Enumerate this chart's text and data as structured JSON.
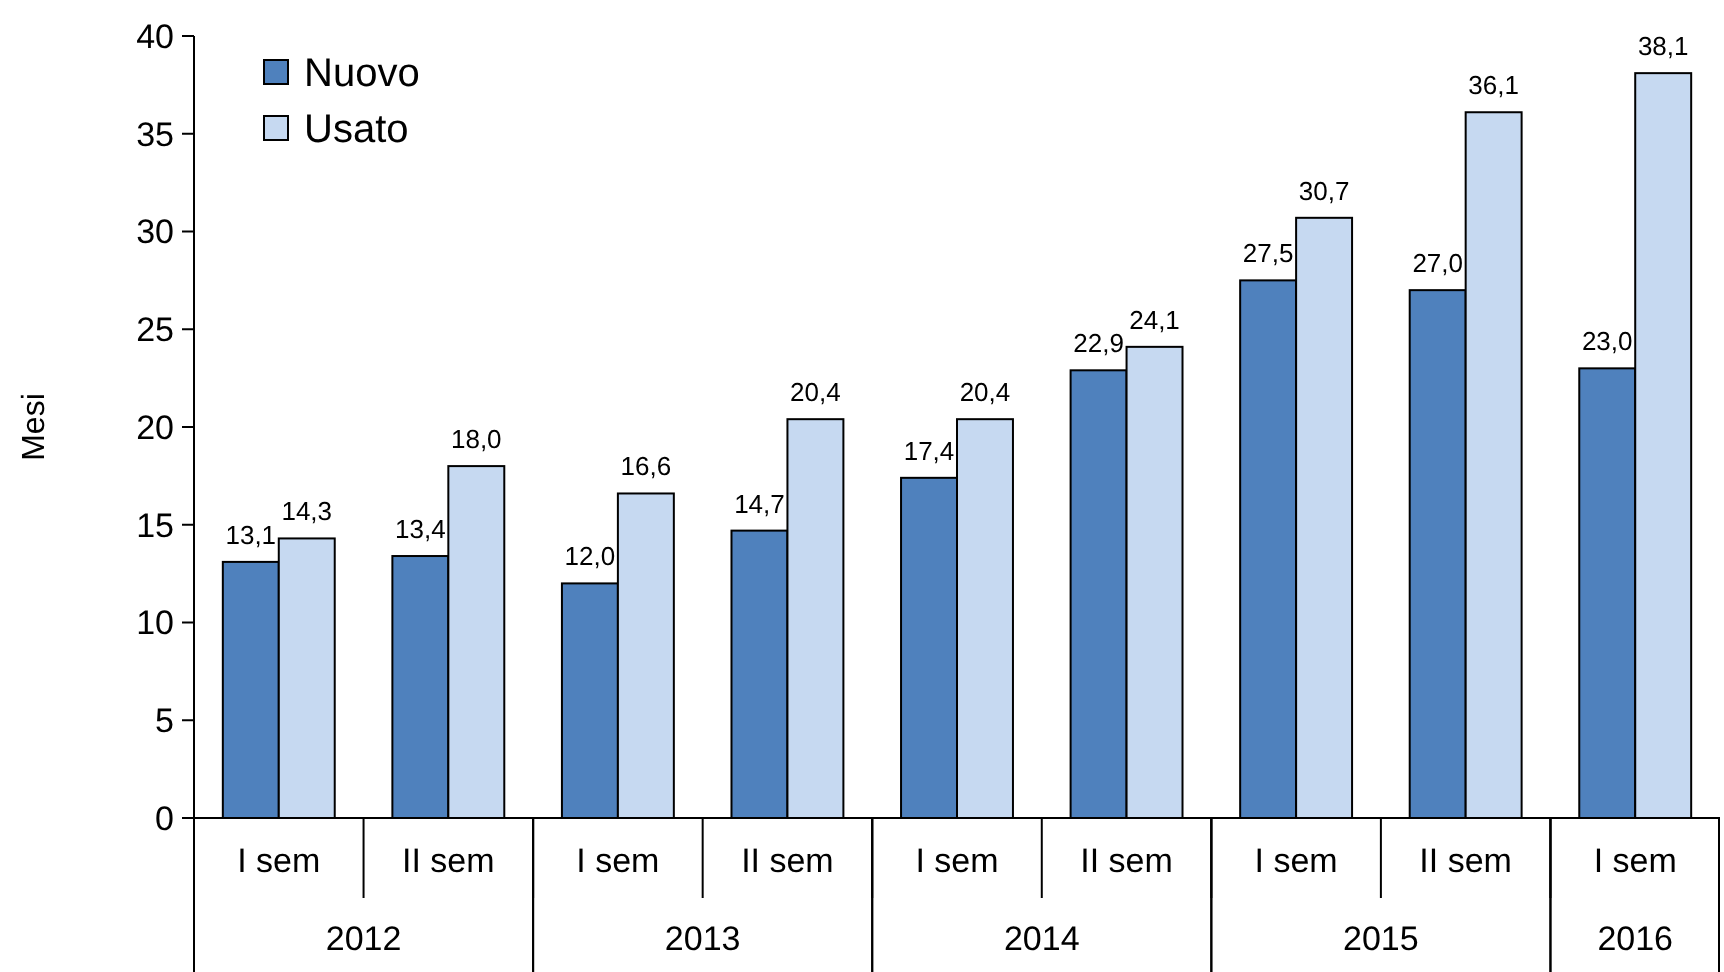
{
  "chart_data": {
    "type": "bar",
    "ylabel": "Mesi",
    "categories": [
      "I sem",
      "II sem",
      "I sem",
      "II sem",
      "I sem",
      "II sem",
      "I sem",
      "II sem",
      "I sem"
    ],
    "annotations": [
      "2012",
      "2013",
      "2014",
      "2015",
      "2016"
    ],
    "series": [
      {
        "name": "Nuovo",
        "color": "#4f81bd",
        "values": [
          13.1,
          13.4,
          12.0,
          14.7,
          17.4,
          22.9,
          27.5,
          27.0,
          23.0
        ],
        "value_labels": [
          "13,1",
          "13,4",
          "12,0",
          "14,7",
          "17,4",
          "22,9",
          "27,5",
          "27,0",
          "23,0"
        ]
      },
      {
        "name": "Usato",
        "color": "#c6d9f1",
        "values": [
          14.3,
          18.0,
          16.6,
          20.4,
          20.4,
          24.1,
          30.7,
          36.1,
          38.1
        ],
        "value_labels": [
          "14,3",
          "18,0",
          "16,6",
          "20,4",
          "20,4",
          "24,1",
          "30,7",
          "36,1",
          "38,1"
        ]
      }
    ],
    "ylim": [
      0,
      40
    ],
    "yticks": [
      0,
      5,
      10,
      15,
      20,
      25,
      30,
      35,
      40
    ],
    "grid": false,
    "legend": "top left"
  }
}
